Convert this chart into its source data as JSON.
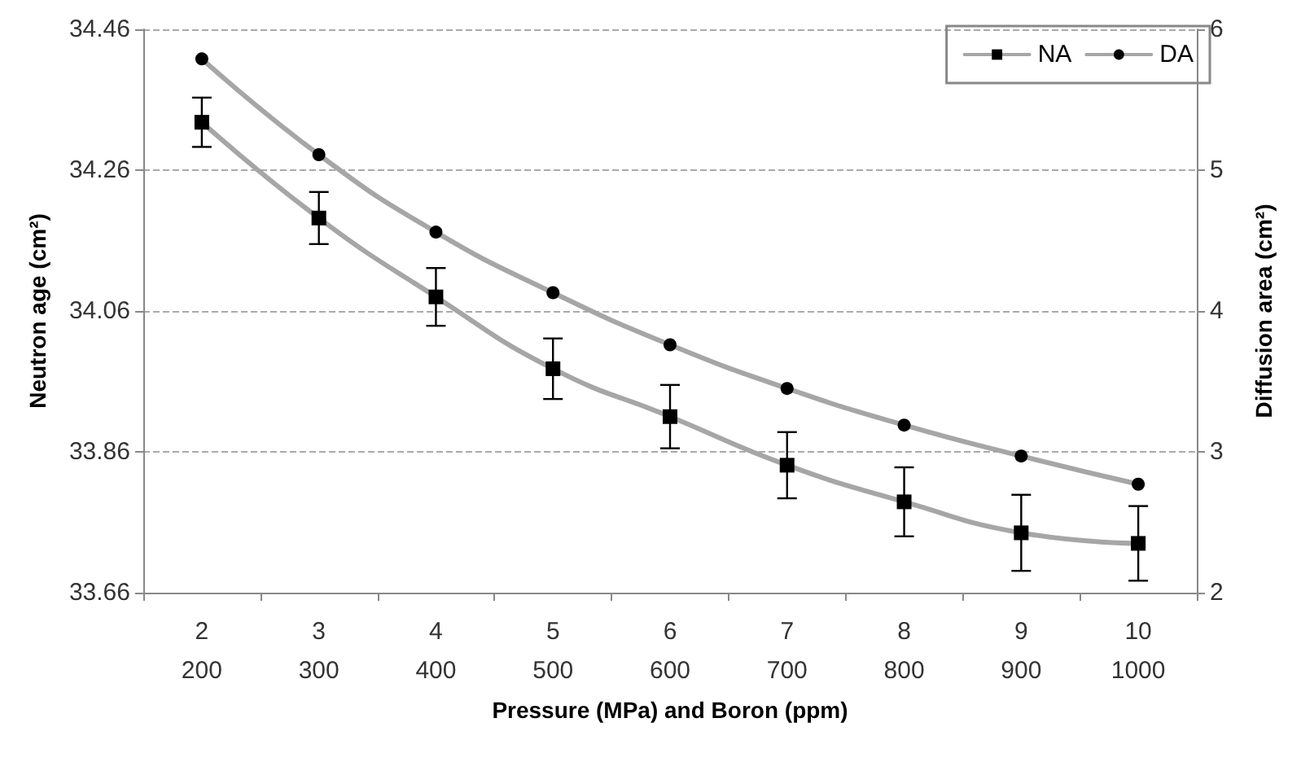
{
  "chart_data": {
    "type": "line",
    "xlabel": "Pressure (MPa) and Boron (ppm)",
    "ylabel": "Neutron age (cm²)",
    "y2label": "Diffusion area (cm²)",
    "categories": [
      "2\n200",
      "3\n300",
      "4\n400",
      "5\n500",
      "6\n600",
      "7\n700",
      "8\n800",
      "9\n900",
      "10\n1000"
    ],
    "series": [
      {
        "name": "NA",
        "color": "#a6a6a6",
        "marker": "square",
        "values": [
          34.328,
          34.192,
          34.08,
          33.978,
          33.91,
          33.841,
          33.789,
          33.745,
          33.73
        ],
        "errors": [
          0.035,
          0.037,
          0.041,
          0.043,
          0.045,
          0.047,
          0.049,
          0.054,
          0.053
        ]
      },
      {
        "name": "DA",
        "color": "#a6a6a6",
        "marker": "circle",
        "axis": "y2",
        "values": [
          5.79,
          5.11,
          4.56,
          4.13,
          3.76,
          3.45,
          3.19,
          2.97,
          2.77
        ]
      }
    ],
    "ylim": [
      33.66,
      34.46
    ],
    "yticks": [
      33.66,
      33.86,
      34.06,
      34.26,
      34.46
    ],
    "y2lim": [
      2,
      6
    ],
    "y2ticks": [
      2,
      3,
      4,
      5,
      6
    ],
    "grid": "y",
    "legend": "top right",
    "line_style": "solid"
  }
}
